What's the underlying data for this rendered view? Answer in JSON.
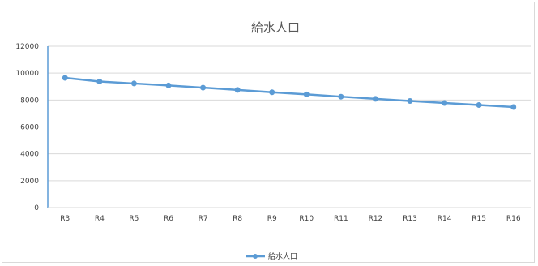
{
  "chart_data": {
    "type": "line",
    "title": "給水人口",
    "categories": [
      "R3",
      "R4",
      "R5",
      "R6",
      "R7",
      "R8",
      "R9",
      "R10",
      "R11",
      "R12",
      "R13",
      "R14",
      "R15",
      "R16"
    ],
    "series": [
      {
        "name": "給水人口",
        "color": "#5b9bd5",
        "marker": "circle",
        "values": [
          9650,
          9380,
          9230,
          9080,
          8920,
          8750,
          8580,
          8420,
          8250,
          8090,
          7930,
          7780,
          7630,
          7480
        ]
      }
    ],
    "yticks": [
      "0",
      "2000",
      "4000",
      "6000",
      "8000",
      "10000",
      "12000"
    ],
    "ylim": [
      0,
      12000
    ],
    "grid": true,
    "legend": "bottom"
  }
}
